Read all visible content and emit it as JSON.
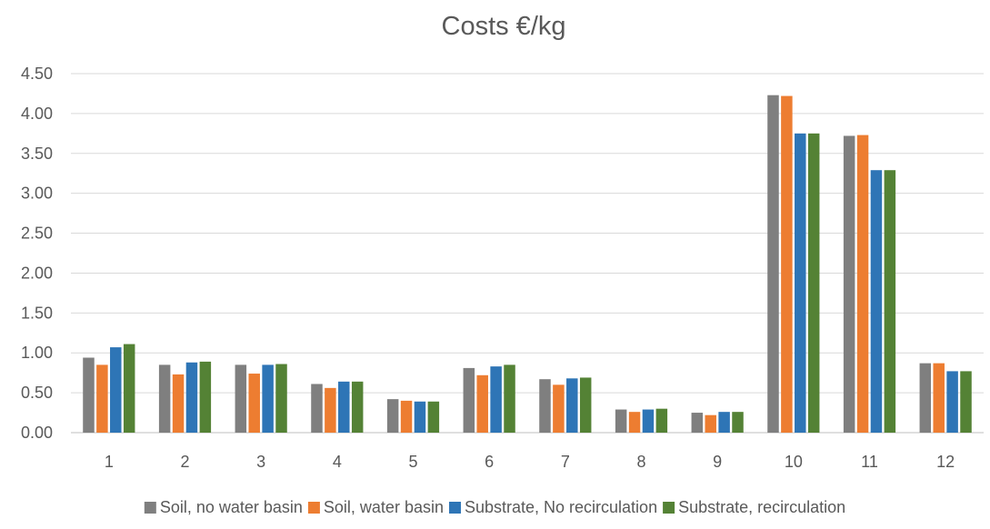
{
  "chart_data": {
    "type": "bar",
    "title": "Costs €/kg",
    "xlabel": "",
    "ylabel": "",
    "categories": [
      "1",
      "2",
      "3",
      "4",
      "5",
      "6",
      "7",
      "8",
      "9",
      "10",
      "11",
      "12"
    ],
    "ylim": [
      0,
      4.5
    ],
    "yticks": [
      "0.00",
      "0.50",
      "1.00",
      "1.50",
      "2.00",
      "2.50",
      "3.00",
      "3.50",
      "4.00",
      "4.50"
    ],
    "grid": true,
    "legend_position": "bottom",
    "series": [
      {
        "name": "Soil, no water basin",
        "color": "#7F7F7F",
        "values": [
          0.94,
          0.85,
          0.85,
          0.61,
          0.42,
          0.81,
          0.67,
          0.29,
          0.25,
          4.23,
          3.72,
          0.87
        ]
      },
      {
        "name": "Soil, water basin",
        "color": "#ED7D31",
        "values": [
          0.85,
          0.73,
          0.74,
          0.56,
          0.4,
          0.72,
          0.6,
          0.26,
          0.22,
          4.22,
          3.73,
          0.87
        ]
      },
      {
        "name": "Substrate, No recirculation",
        "color": "#2E75B6",
        "values": [
          1.07,
          0.88,
          0.85,
          0.64,
          0.39,
          0.83,
          0.68,
          0.29,
          0.26,
          3.75,
          3.29,
          0.77
        ]
      },
      {
        "name": "Substrate, recirculation",
        "color": "#548235",
        "values": [
          1.11,
          0.89,
          0.86,
          0.64,
          0.39,
          0.85,
          0.69,
          0.3,
          0.26,
          3.75,
          3.29,
          0.77
        ]
      }
    ]
  }
}
